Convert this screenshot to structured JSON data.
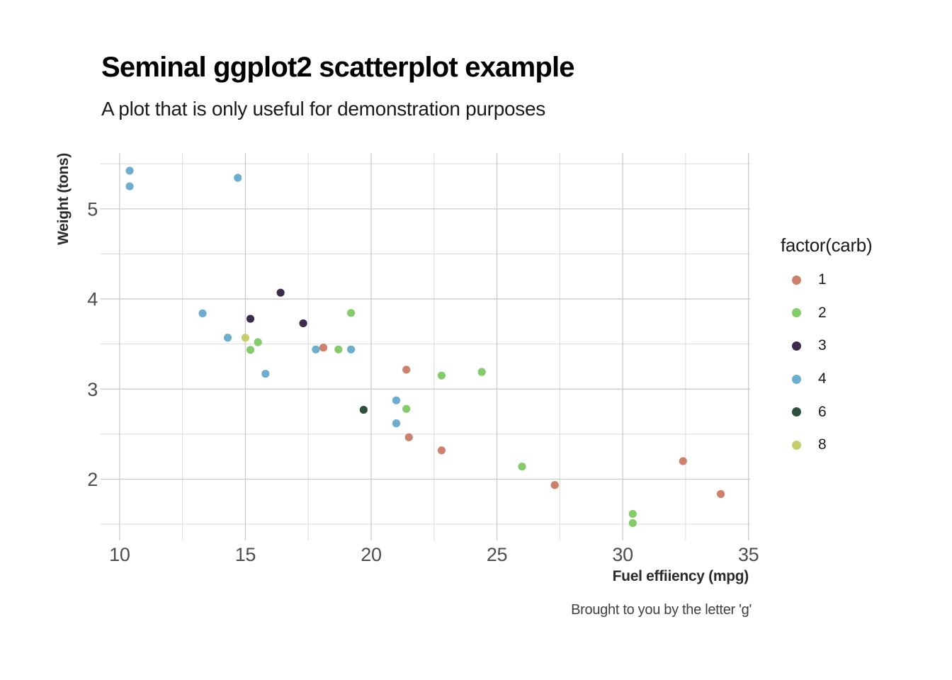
{
  "chart_data": {
    "type": "scatter",
    "title": "Seminal ggplot2 scatterplot example",
    "subtitle": "A plot that is only useful for demonstration purposes",
    "caption": "Brought to you by the letter 'g'",
    "xlabel": "Fuel effiiency (mpg)",
    "ylabel": "Weight (tons)",
    "legend_title": "factor(carb)",
    "legend_position": "right",
    "grid": true,
    "xlim": [
      9.23,
      35.08
    ],
    "ylim": [
      1.32,
      5.62
    ],
    "x_major_ticks": [
      10,
      15,
      20,
      25,
      30,
      35
    ],
    "x_minor_ticks": [
      12.5,
      17.5,
      22.5,
      27.5,
      32.5
    ],
    "y_major_ticks": [
      2,
      3,
      4,
      5
    ],
    "y_minor_ticks": [
      1.5,
      2.5,
      3.5,
      4.5,
      5.5
    ],
    "colors": {
      "1": "#cd806b",
      "2": "#84cc6a",
      "3": "#3c2b4f",
      "4": "#6cadd0",
      "6": "#2d503c",
      "8": "#c6cd6a"
    },
    "legend": [
      {
        "label": "1",
        "color": "#cd806b"
      },
      {
        "label": "2",
        "color": "#84cc6a"
      },
      {
        "label": "3",
        "color": "#3c2b4f"
      },
      {
        "label": "4",
        "color": "#6cadd0"
      },
      {
        "label": "6",
        "color": "#2d503c"
      },
      {
        "label": "8",
        "color": "#c6cd6a"
      }
    ],
    "point_radius": 5.6,
    "points": [
      {
        "mpg": 21.0,
        "wt": 2.62,
        "carb": "4"
      },
      {
        "mpg": 21.0,
        "wt": 2.875,
        "carb": "4"
      },
      {
        "mpg": 22.8,
        "wt": 2.32,
        "carb": "1"
      },
      {
        "mpg": 21.4,
        "wt": 3.215,
        "carb": "1"
      },
      {
        "mpg": 18.7,
        "wt": 3.44,
        "carb": "2"
      },
      {
        "mpg": 18.1,
        "wt": 3.46,
        "carb": "1"
      },
      {
        "mpg": 14.3,
        "wt": 3.57,
        "carb": "4"
      },
      {
        "mpg": 24.4,
        "wt": 3.19,
        "carb": "2"
      },
      {
        "mpg": 22.8,
        "wt": 3.15,
        "carb": "2"
      },
      {
        "mpg": 19.2,
        "wt": 3.44,
        "carb": "4"
      },
      {
        "mpg": 17.8,
        "wt": 3.44,
        "carb": "4"
      },
      {
        "mpg": 16.4,
        "wt": 4.07,
        "carb": "3"
      },
      {
        "mpg": 17.3,
        "wt": 3.73,
        "carb": "3"
      },
      {
        "mpg": 15.2,
        "wt": 3.78,
        "carb": "3"
      },
      {
        "mpg": 10.4,
        "wt": 5.25,
        "carb": "4"
      },
      {
        "mpg": 10.4,
        "wt": 5.424,
        "carb": "4"
      },
      {
        "mpg": 14.7,
        "wt": 5.345,
        "carb": "4"
      },
      {
        "mpg": 32.4,
        "wt": 2.2,
        "carb": "1"
      },
      {
        "mpg": 30.4,
        "wt": 1.615,
        "carb": "2"
      },
      {
        "mpg": 33.9,
        "wt": 1.835,
        "carb": "1"
      },
      {
        "mpg": 21.5,
        "wt": 2.465,
        "carb": "1"
      },
      {
        "mpg": 15.5,
        "wt": 3.52,
        "carb": "2"
      },
      {
        "mpg": 15.2,
        "wt": 3.435,
        "carb": "2"
      },
      {
        "mpg": 13.3,
        "wt": 3.84,
        "carb": "4"
      },
      {
        "mpg": 19.2,
        "wt": 3.845,
        "carb": "2"
      },
      {
        "mpg": 27.3,
        "wt": 1.935,
        "carb": "1"
      },
      {
        "mpg": 26.0,
        "wt": 2.14,
        "carb": "2"
      },
      {
        "mpg": 30.4,
        "wt": 1.513,
        "carb": "2"
      },
      {
        "mpg": 15.8,
        "wt": 3.17,
        "carb": "4"
      },
      {
        "mpg": 19.7,
        "wt": 2.77,
        "carb": "6"
      },
      {
        "mpg": 15.0,
        "wt": 3.57,
        "carb": "8"
      },
      {
        "mpg": 21.4,
        "wt": 2.78,
        "carb": "2"
      }
    ],
    "style": {
      "major_grid_color": "#cbcbcb",
      "minor_grid_color": "#dbdbdb",
      "tick_label_color": "#4d4d4d"
    }
  }
}
